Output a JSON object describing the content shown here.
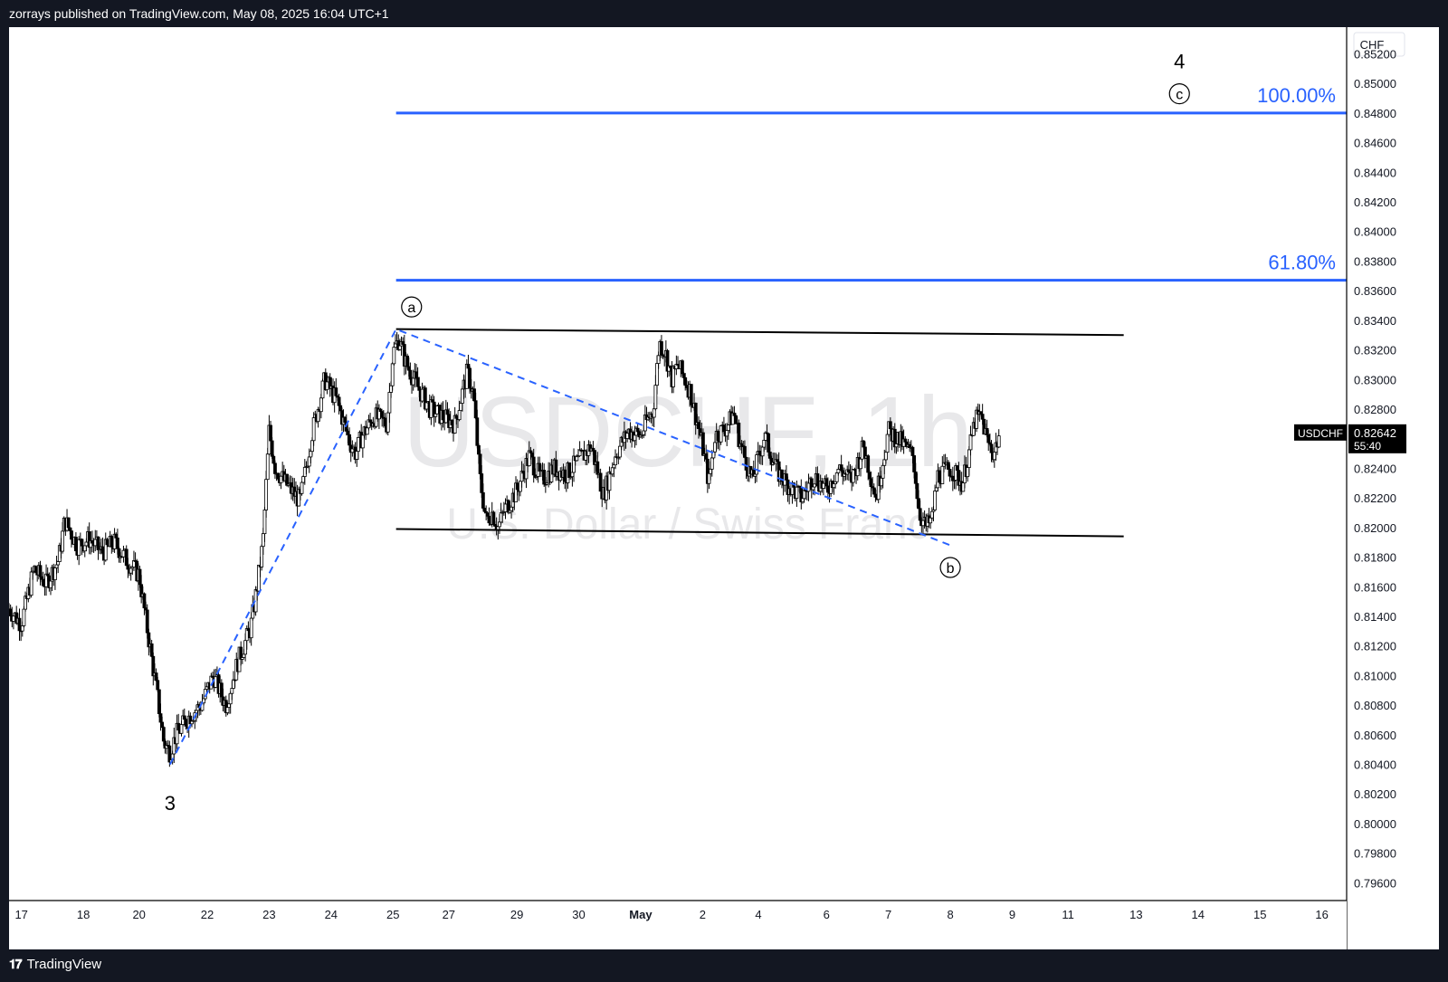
{
  "header": {
    "published_by": "zorrays published on TradingView.com, May 08, 2025 16:04 UTC+1"
  },
  "footer": {
    "brand": "TradingView",
    "brand_icon": "tradingview-logo-icon"
  },
  "colors": {
    "candle": "#000000",
    "fib_line": "#2962ff",
    "fib_label": "#2962ff",
    "dashed_wave": "#2962ff",
    "channel": "#000000",
    "watermark": "#e8e8ea",
    "price_tag_bg": "#000000",
    "price_tag_text": "#ffffff"
  },
  "chart_data": {
    "type": "candlestick",
    "symbol": "USDCHF",
    "interval": "1h",
    "watermark_title": "USDCHF, 1h",
    "watermark_subtitle": "U.S. Dollar / Swiss Franc",
    "currency": "CHF",
    "ylim": [
      0.7948,
      0.8538
    ],
    "y_ticks": [
      "0.85200",
      "0.85000",
      "0.84800",
      "0.84600",
      "0.84400",
      "0.84200",
      "0.84000",
      "0.83800",
      "0.83600",
      "0.83400",
      "0.83200",
      "0.83000",
      "0.82800",
      "0.82600",
      "0.82400",
      "0.82200",
      "0.82000",
      "0.81800",
      "0.81600",
      "0.81400",
      "0.81200",
      "0.81000",
      "0.80800",
      "0.80600",
      "0.80400",
      "0.80200",
      "0.80000",
      "0.79800",
      "0.79600"
    ],
    "x_ticks": [
      {
        "label": "17",
        "i": 2
      },
      {
        "label": "18",
        "i": 12
      },
      {
        "label": "20",
        "i": 21
      },
      {
        "label": "22",
        "i": 32
      },
      {
        "label": "23",
        "i": 42
      },
      {
        "label": "24",
        "i": 52
      },
      {
        "label": "25",
        "i": 62
      },
      {
        "label": "27",
        "i": 71
      },
      {
        "label": "29",
        "i": 82
      },
      {
        "label": "30",
        "i": 92
      },
      {
        "label": "May",
        "i": 102,
        "bold": true
      },
      {
        "label": "2",
        "i": 112
      },
      {
        "label": "4",
        "i": 121
      },
      {
        "label": "6",
        "i": 132
      },
      {
        "label": "7",
        "i": 142
      },
      {
        "label": "8",
        "i": 152
      },
      {
        "label": "9",
        "i": 162
      },
      {
        "label": "11",
        "i": 171
      },
      {
        "label": "13",
        "i": 182
      },
      {
        "label": "14",
        "i": 192
      },
      {
        "label": "15",
        "i": 202
      },
      {
        "label": "16",
        "i": 212
      }
    ],
    "x_range": [
      0,
      216
    ],
    "ohlc_path": [
      {
        "i": 0,
        "p": 0.8145
      },
      {
        "i": 2,
        "p": 0.8135
      },
      {
        "i": 4,
        "p": 0.8172
      },
      {
        "i": 6,
        "p": 0.8162
      },
      {
        "i": 8,
        "p": 0.8178
      },
      {
        "i": 9,
        "p": 0.8205
      },
      {
        "i": 11,
        "p": 0.8188
      },
      {
        "i": 13,
        "p": 0.8192
      },
      {
        "i": 15,
        "p": 0.8183
      },
      {
        "i": 17,
        "p": 0.819
      },
      {
        "i": 19,
        "p": 0.8178
      },
      {
        "i": 21,
        "p": 0.8168
      },
      {
        "i": 22,
        "p": 0.814
      },
      {
        "i": 24,
        "p": 0.8085
      },
      {
        "i": 25,
        "p": 0.8055
      },
      {
        "i": 26,
        "p": 0.8048
      },
      {
        "i": 27,
        "p": 0.806
      },
      {
        "i": 29,
        "p": 0.8072
      },
      {
        "i": 31,
        "p": 0.808
      },
      {
        "i": 33,
        "p": 0.81
      },
      {
        "i": 35,
        "p": 0.808
      },
      {
        "i": 37,
        "p": 0.811
      },
      {
        "i": 39,
        "p": 0.8132
      },
      {
        "i": 40,
        "p": 0.8158
      },
      {
        "i": 41,
        "p": 0.819
      },
      {
        "i": 42,
        "p": 0.8265
      },
      {
        "i": 43,
        "p": 0.824
      },
      {
        "i": 45,
        "p": 0.8228
      },
      {
        "i": 47,
        "p": 0.8218
      },
      {
        "i": 49,
        "p": 0.8265
      },
      {
        "i": 51,
        "p": 0.83
      },
      {
        "i": 53,
        "p": 0.8285
      },
      {
        "i": 55,
        "p": 0.8258
      },
      {
        "i": 56,
        "p": 0.825
      },
      {
        "i": 57,
        "p": 0.8262
      },
      {
        "i": 59,
        "p": 0.8275
      },
      {
        "i": 61,
        "p": 0.827
      },
      {
        "i": 62,
        "p": 0.8318
      },
      {
        "i": 63,
        "p": 0.8328
      },
      {
        "i": 64,
        "p": 0.8312
      },
      {
        "i": 66,
        "p": 0.8295
      },
      {
        "i": 68,
        "p": 0.828
      },
      {
        "i": 70,
        "p": 0.8275
      },
      {
        "i": 72,
        "p": 0.827
      },
      {
        "i": 74,
        "p": 0.8305
      },
      {
        "i": 75,
        "p": 0.829
      },
      {
        "i": 76,
        "p": 0.8235
      },
      {
        "i": 77,
        "p": 0.8205
      },
      {
        "i": 78,
        "p": 0.821
      },
      {
        "i": 79,
        "p": 0.82
      },
      {
        "i": 80,
        "p": 0.8212
      },
      {
        "i": 82,
        "p": 0.8225
      },
      {
        "i": 84,
        "p": 0.8248
      },
      {
        "i": 86,
        "p": 0.8232
      },
      {
        "i": 88,
        "p": 0.824
      },
      {
        "i": 90,
        "p": 0.8236
      },
      {
        "i": 92,
        "p": 0.8245
      },
      {
        "i": 94,
        "p": 0.8255
      },
      {
        "i": 96,
        "p": 0.8222
      },
      {
        "i": 98,
        "p": 0.825
      },
      {
        "i": 100,
        "p": 0.8265
      },
      {
        "i": 102,
        "p": 0.8262
      },
      {
        "i": 103,
        "p": 0.8272
      },
      {
        "i": 104,
        "p": 0.8278
      },
      {
        "i": 105,
        "p": 0.8325
      },
      {
        "i": 106,
        "p": 0.8318
      },
      {
        "i": 107,
        "p": 0.83
      },
      {
        "i": 108,
        "p": 0.831
      },
      {
        "i": 110,
        "p": 0.8292
      },
      {
        "i": 112,
        "p": 0.8255
      },
      {
        "i": 113,
        "p": 0.823
      },
      {
        "i": 114,
        "p": 0.8262
      },
      {
        "i": 116,
        "p": 0.8268
      },
      {
        "i": 117,
        "p": 0.8278
      },
      {
        "i": 118,
        "p": 0.8258
      },
      {
        "i": 120,
        "p": 0.8232
      },
      {
        "i": 122,
        "p": 0.8262
      },
      {
        "i": 124,
        "p": 0.8238
      },
      {
        "i": 126,
        "p": 0.8228
      },
      {
        "i": 128,
        "p": 0.822
      },
      {
        "i": 130,
        "p": 0.8235
      },
      {
        "i": 132,
        "p": 0.8225
      },
      {
        "i": 134,
        "p": 0.824
      },
      {
        "i": 136,
        "p": 0.8232
      },
      {
        "i": 138,
        "p": 0.8255
      },
      {
        "i": 140,
        "p": 0.822
      },
      {
        "i": 142,
        "p": 0.8265
      },
      {
        "i": 144,
        "p": 0.8258
      },
      {
        "i": 146,
        "p": 0.8248
      },
      {
        "i": 147,
        "p": 0.821
      },
      {
        "i": 148,
        "p": 0.82
      },
      {
        "i": 149,
        "p": 0.8205
      },
      {
        "i": 150,
        "p": 0.8235
      },
      {
        "i": 152,
        "p": 0.824
      },
      {
        "i": 154,
        "p": 0.823
      },
      {
        "i": 155,
        "p": 0.825
      },
      {
        "i": 156,
        "p": 0.8272
      },
      {
        "i": 157,
        "p": 0.8275
      },
      {
        "i": 158,
        "p": 0.8258
      },
      {
        "i": 159,
        "p": 0.825
      },
      {
        "i": 160,
        "p": 0.8264
      }
    ],
    "fib_levels": [
      {
        "label": "100.00%",
        "price": 0.848,
        "i_start": 62.5
      },
      {
        "label": "61.80%",
        "price": 0.8367,
        "i_start": 62.5
      }
    ],
    "channel": {
      "upper": [
        {
          "i": 62.5,
          "p": 0.8334
        },
        {
          "i": 180,
          "p": 0.833
        }
      ],
      "lower": [
        {
          "i": 62.5,
          "p": 0.8199
        },
        {
          "i": 180,
          "p": 0.8194
        }
      ]
    },
    "dashed_wave": [
      {
        "i": 26,
        "p": 0.804
      },
      {
        "i": 62.5,
        "p": 0.8334
      },
      {
        "i": 152,
        "p": 0.8188
      }
    ],
    "wave_labels": [
      {
        "text": "3",
        "i": 26,
        "p": 0.8014,
        "circled": false
      },
      {
        "text": "a",
        "i": 65,
        "p": 0.8349,
        "circled": true
      },
      {
        "text": "b",
        "i": 152,
        "p": 0.8173,
        "circled": true
      },
      {
        "text": "c",
        "i": 189,
        "p": 0.8493,
        "circled": true
      },
      {
        "text": "4",
        "i": 189,
        "p": 0.8515,
        "circled": false
      }
    ],
    "last_price": {
      "symbol": "USDCHF",
      "price": "0.82642",
      "value": 0.82642,
      "countdown": "55:40"
    }
  }
}
